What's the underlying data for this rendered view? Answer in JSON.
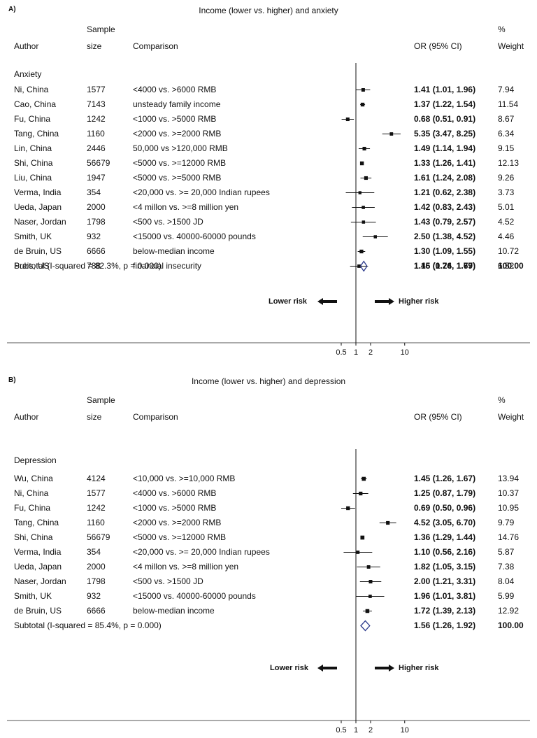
{
  "chart_data": [
    {
      "type": "forest",
      "panel_label": "A)",
      "title": "Income (lower vs. higher) and anxiety",
      "headers": {
        "author": "Author",
        "sample_top": "Sample",
        "sample_bottom": "size",
        "comparison": "Comparison",
        "or": "OR (95% CI)",
        "weight_top": "%",
        "weight_bottom": "Weight"
      },
      "group": "Anxiety",
      "rows": [
        {
          "author": "Ni, China",
          "size": "1577",
          "comparison": "<4000 vs. >6000 RMB",
          "or_text": "1.41 (1.01, 1.96)",
          "weight": "7.94",
          "or": 1.41,
          "lo": 1.01,
          "hi": 1.96
        },
        {
          "author": "Cao, China",
          "size": "7143",
          "comparison": "unsteady family income",
          "or_text": "1.37 (1.22, 1.54)",
          "weight": "11.54",
          "or": 1.37,
          "lo": 1.22,
          "hi": 1.54
        },
        {
          "author": "Fu, China",
          "size": "1242",
          "comparison": "<1000 vs. >5000 RMB",
          "or_text": "0.68 (0.51, 0.91)",
          "weight": "8.67",
          "or": 0.68,
          "lo": 0.51,
          "hi": 0.91
        },
        {
          "author": "Tang, China",
          "size": "1160",
          "comparison": "<2000 vs. >=2000 RMB",
          "or_text": "5.35 (3.47, 8.25)",
          "weight": "6.34",
          "or": 5.35,
          "lo": 3.47,
          "hi": 8.25
        },
        {
          "author": "Lin, China",
          "size": "2446",
          "comparison": "50,000 vs >120,000 RMB",
          "or_text": "1.49 (1.14, 1.94)",
          "weight": "9.15",
          "or": 1.49,
          "lo": 1.14,
          "hi": 1.94
        },
        {
          "author": "Shi, China",
          "size": "56679",
          "comparison": "<5000 vs. >=12000 RMB",
          "or_text": "1.33 (1.26, 1.41)",
          "weight": "12.13",
          "or": 1.33,
          "lo": 1.26,
          "hi": 1.41
        },
        {
          "author": "Liu, China",
          "size": "1947",
          "comparison": "<5000 vs. >=5000 RMB",
          "or_text": "1.61 (1.24, 2.08)",
          "weight": "9.26",
          "or": 1.61,
          "lo": 1.24,
          "hi": 2.08
        },
        {
          "author": "Verma, India",
          "size": "354",
          "comparison": "<20,000 vs. >= 20,000 Indian rupees",
          "or_text": "1.21 (0.62, 2.38)",
          "weight": "3.73",
          "or": 1.21,
          "lo": 0.62,
          "hi": 2.38
        },
        {
          "author": "Ueda, Japan",
          "size": "2000",
          "comparison": "<4 millon vs. >=8 million yen",
          "or_text": "1.42 (0.83, 2.43)",
          "weight": "5.01",
          "or": 1.42,
          "lo": 0.83,
          "hi": 2.43
        },
        {
          "author": "Naser, Jordan",
          "size": "1798",
          "comparison": "<500 vs. >1500 JD",
          "or_text": "1.43 (0.79, 2.57)",
          "weight": "4.52",
          "or": 1.43,
          "lo": 0.79,
          "hi": 2.57
        },
        {
          "author": "Smith, UK",
          "size": "932",
          "comparison": "<15000 vs. 40000-60000 pounds",
          "or_text": "2.50 (1.38, 4.52)",
          "weight": "4.46",
          "or": 2.5,
          "lo": 1.38,
          "hi": 4.52
        },
        {
          "author": "de Bruin, US",
          "size": "6666",
          "comparison": "below-median income",
          "or_text": "1.30 (1.09, 1.55)",
          "weight": "10.72",
          "or": 1.3,
          "lo": 1.09,
          "hi": 1.55
        },
        {
          "author": "Preis, US",
          "size": "788",
          "comparison": "financial insecurity",
          "or_text": "1.16 (0.76, 1.77)",
          "weight": "6.52",
          "or": 1.16,
          "lo": 0.76,
          "hi": 1.77
        }
      ],
      "subtotal": {
        "label": "Subtotal  (I-squared = 82.3%, p = 0.000)",
        "or_text": "1.45 (1.24, 1.69)",
        "weight": "100.00",
        "or": 1.45,
        "lo": 1.24,
        "hi": 1.69
      },
      "lower_label": "Lower risk",
      "higher_label": "Higher risk",
      "x_ticks": [
        {
          "v": 0.5,
          "label": "0.5"
        },
        {
          "v": 1,
          "label": "1"
        },
        {
          "v": 2,
          "label": "2"
        },
        {
          "v": 10,
          "label": "10"
        }
      ],
      "x_scale": "log"
    },
    {
      "type": "forest",
      "panel_label": "B)",
      "title": "Income (lower vs. higher) and depression",
      "headers": {
        "author": "Author",
        "sample_top": "Sample",
        "sample_bottom": "size",
        "comparison": "Comparison",
        "or": "OR (95% CI)",
        "weight_top": "%",
        "weight_bottom": "Weight"
      },
      "group": "Depression",
      "rows": [
        {
          "author": "Wu, China",
          "size": "4124",
          "comparison": "<10,000 vs. >=10,000 RMB",
          "or_text": "1.45 (1.26, 1.67)",
          "weight": "13.94",
          "or": 1.45,
          "lo": 1.26,
          "hi": 1.67
        },
        {
          "author": "Ni, China",
          "size": "1577",
          "comparison": "<4000 vs. >6000 RMB",
          "or_text": "1.25 (0.87, 1.79)",
          "weight": "10.37",
          "or": 1.25,
          "lo": 0.87,
          "hi": 1.79
        },
        {
          "author": "Fu, China",
          "size": "1242",
          "comparison": "<1000 vs. >5000 RMB",
          "or_text": "0.69 (0.50, 0.96)",
          "weight": "10.95",
          "or": 0.69,
          "lo": 0.5,
          "hi": 0.96
        },
        {
          "author": "Tang, China",
          "size": "1160",
          "comparison": "<2000 vs. >=2000 RMB",
          "or_text": "4.52 (3.05, 6.70)",
          "weight": "9.79",
          "or": 4.52,
          "lo": 3.05,
          "hi": 6.7
        },
        {
          "author": "Shi, China",
          "size": "56679",
          "comparison": "<5000 vs. >=12000 RMB",
          "or_text": "1.36 (1.29, 1.44)",
          "weight": "14.76",
          "or": 1.36,
          "lo": 1.29,
          "hi": 1.44
        },
        {
          "author": "Verma, India",
          "size": "354",
          "comparison": "<20,000 vs. >= 20,000 Indian rupees",
          "or_text": "1.10 (0.56, 2.16)",
          "weight": "5.87",
          "or": 1.1,
          "lo": 0.56,
          "hi": 2.16
        },
        {
          "author": "Ueda, Japan",
          "size": "2000",
          "comparison": "<4 millon vs. >=8 million yen",
          "or_text": "1.82 (1.05, 3.15)",
          "weight": "7.38",
          "or": 1.82,
          "lo": 1.05,
          "hi": 3.15
        },
        {
          "author": "Naser, Jordan",
          "size": "1798",
          "comparison": "<500 vs. >1500 JD",
          "or_text": "2.00 (1.21, 3.31)",
          "weight": "8.04",
          "or": 2.0,
          "lo": 1.21,
          "hi": 3.31
        },
        {
          "author": "Smith, UK",
          "size": "932",
          "comparison": "<15000 vs. 40000-60000 pounds",
          "or_text": "1.96 (1.01, 3.81)",
          "weight": "5.99",
          "or": 1.96,
          "lo": 1.01,
          "hi": 3.81
        },
        {
          "author": "de Bruin, US",
          "size": "6666",
          "comparison": "below-median income",
          "or_text": "1.72 (1.39, 2.13)",
          "weight": "12.92",
          "or": 1.72,
          "lo": 1.39,
          "hi": 2.13
        }
      ],
      "subtotal": {
        "label": "Subtotal  (I-squared = 85.4%, p = 0.000)",
        "or_text": "1.56 (1.26, 1.92)",
        "weight": "100.00",
        "or": 1.56,
        "lo": 1.26,
        "hi": 1.92
      },
      "lower_label": "Lower risk",
      "higher_label": "Higher risk",
      "x_ticks": [
        {
          "v": 0.5,
          "label": "0.5"
        },
        {
          "v": 1,
          "label": "1"
        },
        {
          "v": 2,
          "label": "2"
        },
        {
          "v": 10,
          "label": "10"
        }
      ],
      "x_scale": "log"
    }
  ],
  "colors": {
    "diamond": "#2b3a8c",
    "ink": "#111111"
  }
}
